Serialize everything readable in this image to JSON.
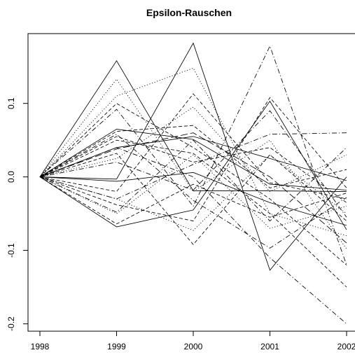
{
  "chart_data": {
    "type": "line",
    "title": "Epsilon-Rauschen",
    "xlabel": "",
    "ylabel": "",
    "x": [
      1998,
      1999,
      2000,
      2001,
      2002
    ],
    "xlim": [
      1998,
      2002
    ],
    "ylim": [
      -0.21,
      0.195
    ],
    "x_ticks": [
      "1998",
      "1999",
      "2000",
      "2001",
      "2002"
    ],
    "y_ticks": [
      -0.2,
      -0.1,
      0.0,
      0.1
    ],
    "y_tick_labels": [
      "-0.2",
      "-0.1",
      "0.0",
      "0.1"
    ],
    "grid": false,
    "legend": "none",
    "line_color": "#000000",
    "series": [
      {
        "style": "solid",
        "values": [
          0,
          0.158,
          -0.019,
          -0.019,
          -0.02
        ]
      },
      {
        "style": "solid",
        "values": [
          0,
          -0.003,
          0.182,
          -0.127,
          0.0
        ]
      },
      {
        "style": "solid",
        "values": [
          0,
          -0.068,
          -0.045,
          0.103,
          -0.072
        ]
      },
      {
        "style": "solid",
        "values": [
          0,
          0.04,
          0.055,
          0.025,
          -0.005
        ]
      },
      {
        "style": "solid",
        "values": [
          0,
          -0.006,
          0.006,
          -0.035,
          -0.066
        ]
      },
      {
        "style": "solid",
        "values": [
          0,
          0.065,
          0.051,
          -0.01,
          -0.018
        ]
      },
      {
        "style": "dotted",
        "values": [
          0,
          0.133,
          -0.02,
          0.05,
          -0.098
        ]
      },
      {
        "style": "dotted",
        "values": [
          0,
          0.11,
          0.148,
          -0.05,
          -0.08
        ]
      },
      {
        "style": "dotted",
        "values": [
          0,
          -0.03,
          -0.073,
          0.03,
          -0.05
        ]
      },
      {
        "style": "dotted",
        "values": [
          0,
          0.025,
          0.095,
          -0.02,
          0.03
        ]
      },
      {
        "style": "dotted",
        "values": [
          0,
          -0.05,
          0.03,
          -0.07,
          -0.04
        ]
      },
      {
        "style": "dashed",
        "values": [
          0,
          0.1,
          0.04,
          -0.03,
          -0.12
        ]
      },
      {
        "style": "dashed",
        "values": [
          0,
          -0.064,
          -0.01,
          -0.055,
          -0.022
        ]
      },
      {
        "style": "dashed",
        "values": [
          0,
          0.055,
          0.02,
          0.04,
          -0.035
        ]
      },
      {
        "style": "dashed",
        "values": [
          0,
          0.032,
          -0.092,
          0.03,
          -0.06
        ]
      },
      {
        "style": "dashed",
        "values": [
          0,
          -0.02,
          0.113,
          -0.008,
          -0.03
        ]
      },
      {
        "style": "dashed",
        "values": [
          0,
          0.062,
          0.07,
          -0.015,
          0.01
        ]
      },
      {
        "style": "dashed",
        "values": [
          0,
          -0.038,
          -0.06,
          0.108,
          -0.015
        ]
      },
      {
        "style": "dashed",
        "values": [
          0,
          0.05,
          0.032,
          -0.05,
          -0.15
        ]
      },
      {
        "style": "dashdot",
        "values": [
          0,
          0.092,
          -0.04,
          0.178,
          -0.12
        ]
      },
      {
        "style": "dashdot",
        "values": [
          0,
          0.04,
          0.0,
          -0.11,
          -0.2
        ]
      },
      {
        "style": "dashdot",
        "values": [
          0,
          -0.03,
          0.017,
          0.058,
          0.06
        ]
      },
      {
        "style": "dashdot",
        "values": [
          0,
          -0.048,
          0.05,
          -0.06,
          0.04
        ]
      },
      {
        "style": "dashdot",
        "values": [
          0,
          0.02,
          -0.018,
          0.09,
          -0.055
        ]
      },
      {
        "style": "dashdot",
        "values": [
          0,
          0.058,
          -0.032,
          -0.097,
          -0.028
        ]
      },
      {
        "style": "longdash",
        "values": [
          0,
          0.038,
          0.06,
          0.0,
          -0.09
        ]
      }
    ]
  }
}
